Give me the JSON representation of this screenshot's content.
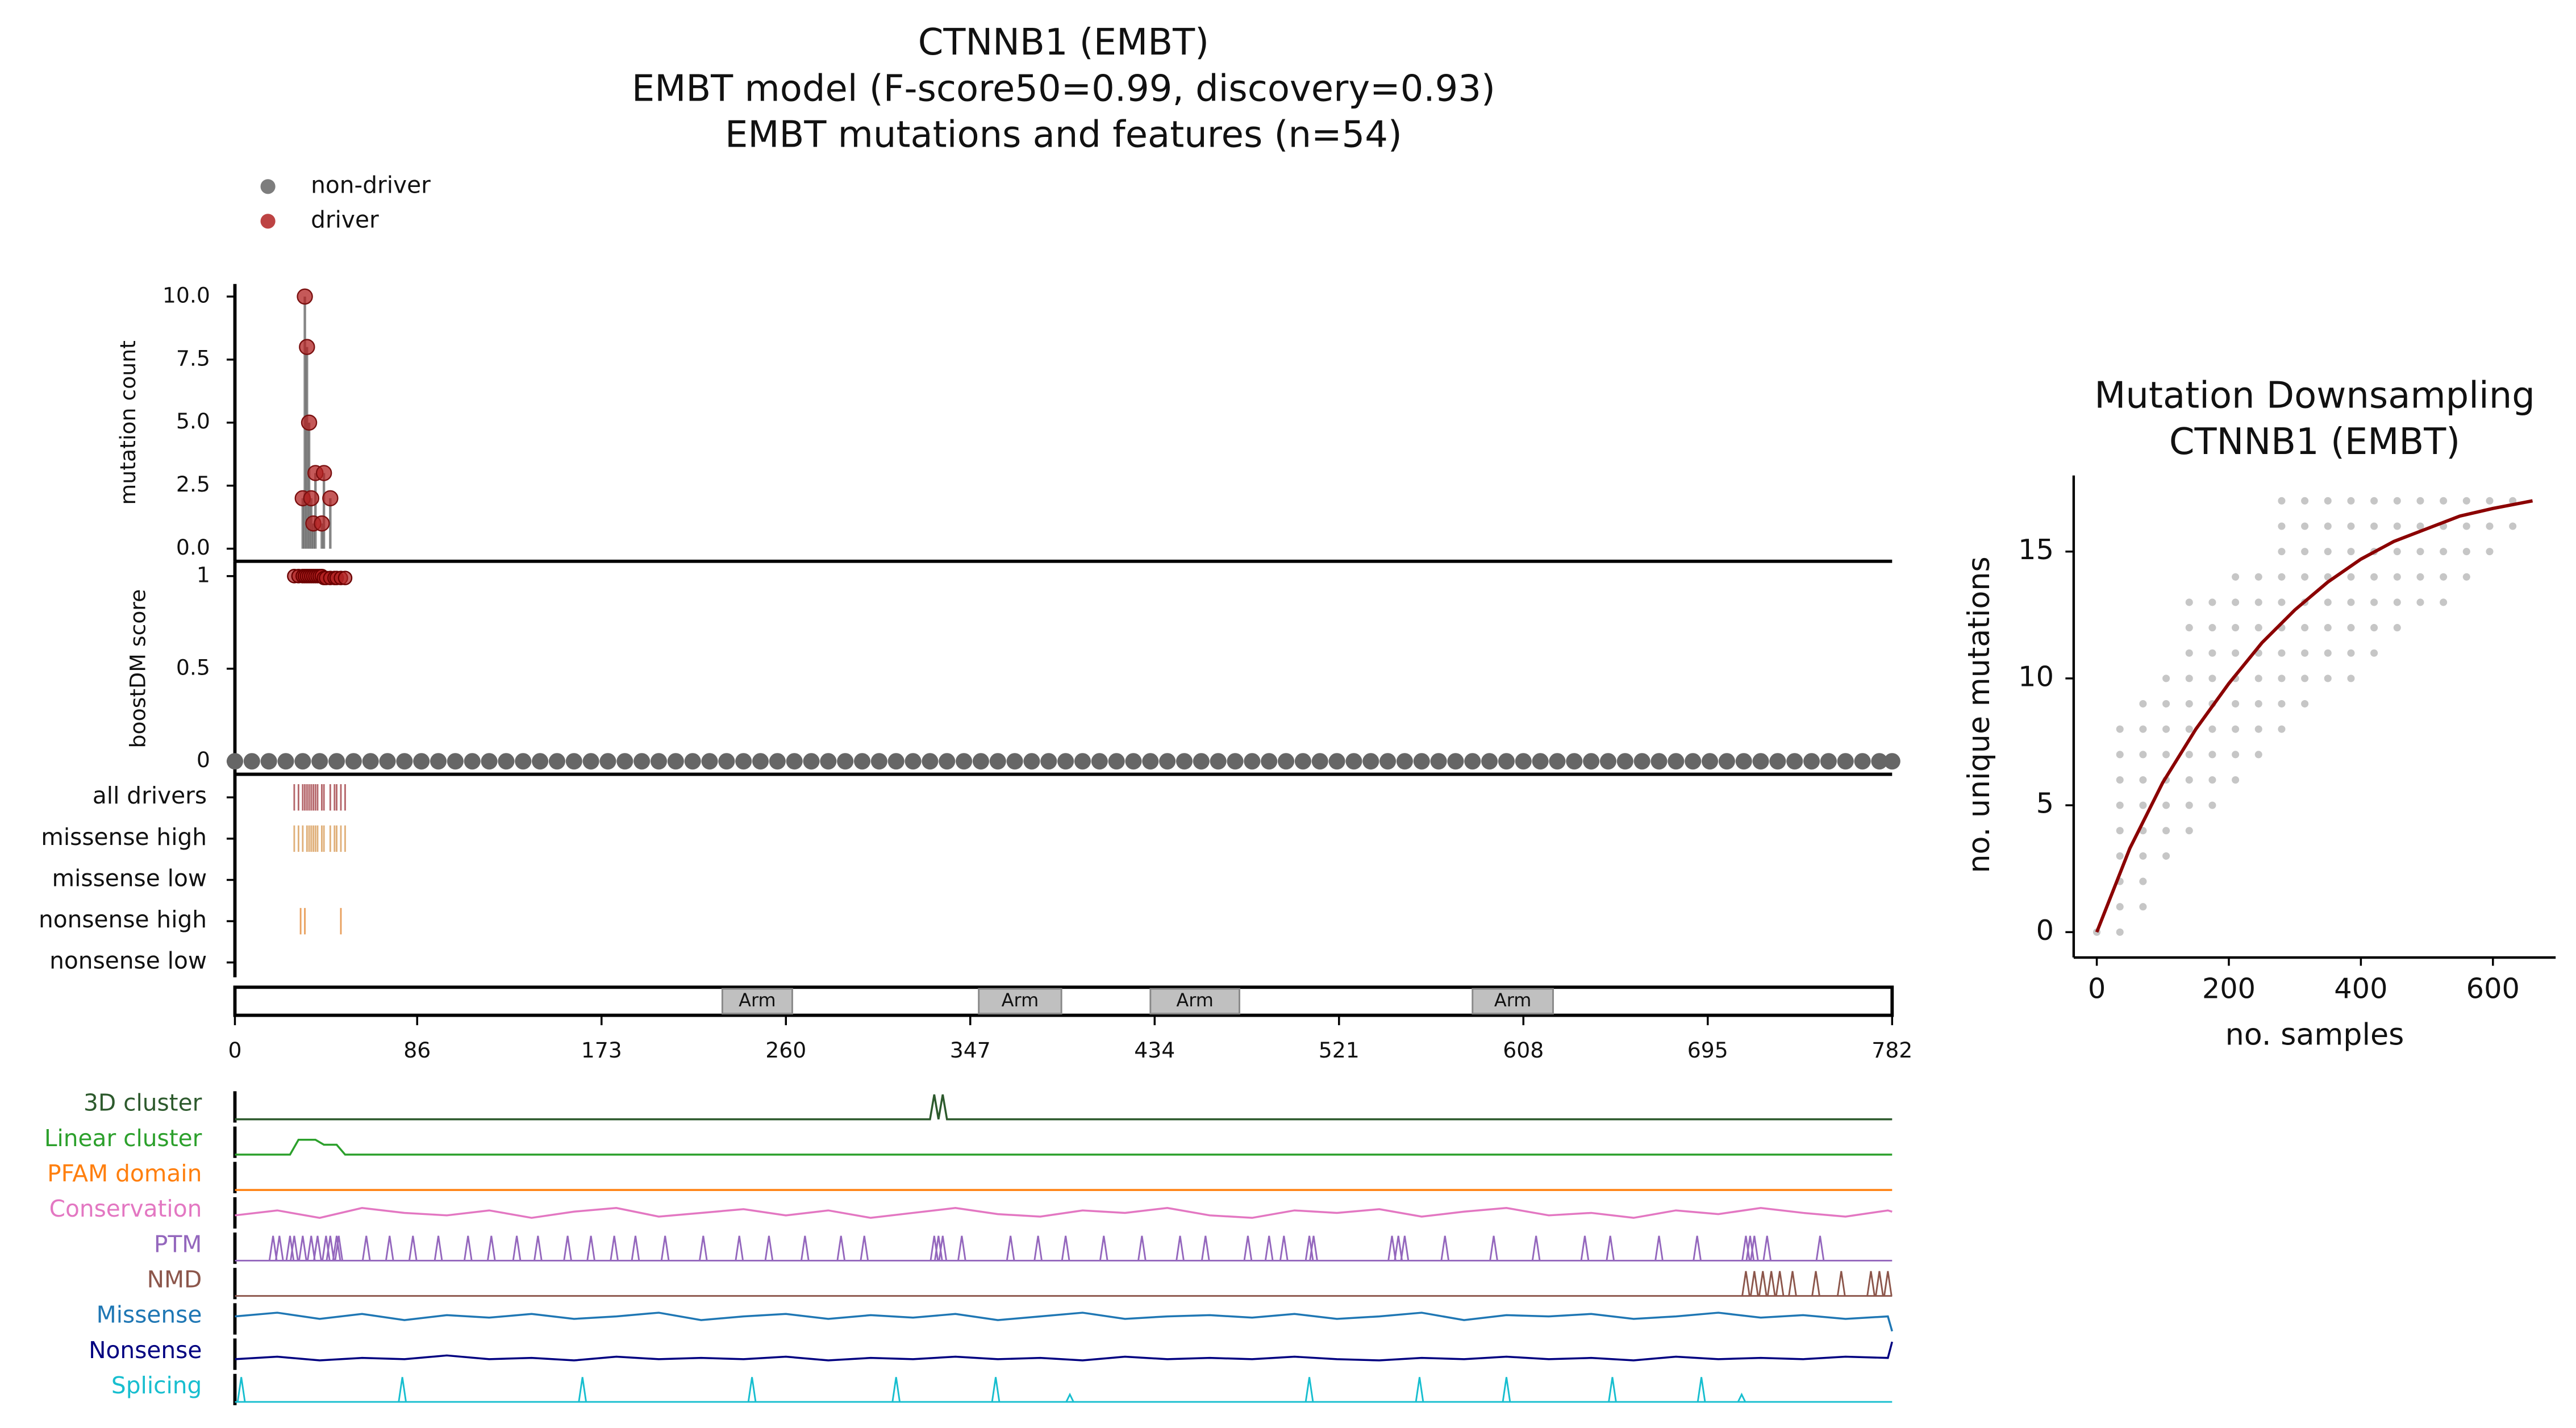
{
  "chart_data": [
    {
      "type": "lollipop",
      "title": [
        "CTNNB1 (EMBT)",
        "EMBT model (F-score50=0.99, discovery=0.93)",
        "EMBT mutations and features (n=54)"
      ],
      "xlim": [
        0,
        782
      ],
      "xticks": [
        0,
        86,
        173,
        260,
        347,
        434,
        521,
        608,
        695,
        782
      ],
      "mutations": {
        "ylabel": "mutation count",
        "color": "#b22222",
        "ylim": [
          -0.5,
          10.5
        ],
        "yticks": [
          {
            "value": 0,
            "label": "0.0"
          },
          {
            "value": 2.5,
            "label": "2.5"
          },
          {
            "value": 5,
            "label": "5.0"
          },
          {
            "value": 7.5,
            "label": "7.5"
          },
          {
            "value": 10,
            "label": "10.0"
          }
        ],
        "x": [
          32,
          33,
          34,
          35,
          36,
          37,
          38,
          41,
          42,
          45
        ],
        "values": [
          2,
          10,
          8,
          5,
          2,
          1,
          3,
          1,
          3,
          2
        ]
      },
      "scores": {
        "ylabel": "boostDM score",
        "ylim": [
          -0.07,
          1.08
        ],
        "yticks": [
          0,
          0.5,
          1
        ],
        "series": [
          {
            "name": "non-driver",
            "color": "#666666",
            "x": [
              0,
              8,
              16,
              24,
              32,
              40,
              48,
              56,
              64,
              72,
              80,
              88,
              96,
              104,
              112,
              120,
              128,
              136,
              144,
              152,
              160,
              168,
              176,
              184,
              192,
              200,
              208,
              216,
              224,
              232,
              240,
              248,
              256,
              264,
              272,
              280,
              288,
              296,
              304,
              312,
              320,
              328,
              336,
              344,
              352,
              360,
              368,
              376,
              384,
              392,
              400,
              408,
              416,
              424,
              432,
              440,
              448,
              456,
              464,
              472,
              480,
              488,
              496,
              504,
              512,
              520,
              528,
              536,
              544,
              552,
              560,
              568,
              576,
              584,
              592,
              600,
              608,
              616,
              624,
              632,
              640,
              648,
              656,
              664,
              672,
              680,
              688,
              696,
              704,
              712,
              720,
              728,
              736,
              744,
              752,
              760,
              768,
              776,
              782
            ],
            "values": [
              0,
              0,
              0,
              0,
              0,
              0,
              0,
              0,
              0,
              0,
              0,
              0,
              0,
              0,
              0,
              0,
              0,
              0,
              0,
              0,
              0,
              0,
              0,
              0,
              0,
              0,
              0,
              0,
              0,
              0,
              0,
              0,
              0,
              0,
              0,
              0,
              0,
              0,
              0,
              0,
              0,
              0,
              0,
              0,
              0,
              0,
              0,
              0,
              0,
              0,
              0,
              0,
              0,
              0,
              0,
              0,
              0,
              0,
              0,
              0,
              0,
              0,
              0,
              0,
              0,
              0,
              0,
              0,
              0,
              0,
              0,
              0,
              0,
              0,
              0,
              0,
              0,
              0,
              0,
              0,
              0,
              0,
              0,
              0,
              0,
              0,
              0,
              0,
              0,
              0,
              0,
              0,
              0,
              0,
              0,
              0,
              0,
              0,
              0
            ]
          },
          {
            "name": "driver",
            "color": "#b22222",
            "x": [
              28,
              30,
              32,
              33,
              34,
              35,
              36,
              37,
              38,
              39,
              40,
              41,
              42,
              43,
              45,
              47,
              48,
              50,
              52
            ],
            "values": [
              1,
              1,
              1,
              1,
              1,
              1,
              1,
              1,
              1,
              1,
              1,
              1,
              0.99,
              0.99,
              0.99,
              0.99,
              0.99,
              0.99,
              0.99
            ]
          }
        ]
      },
      "tracks": [
        {
          "name": "all drivers",
          "color": "#b5676b",
          "positions": [
            28,
            30,
            32,
            33,
            34,
            35,
            36,
            37,
            38,
            39,
            41,
            42,
            45,
            47,
            48,
            50,
            52
          ]
        },
        {
          "name": "missense high",
          "color": "#e0b07a",
          "positions": [
            28,
            30,
            32,
            34,
            35,
            36,
            37,
            38,
            39,
            41,
            42,
            45,
            47,
            48,
            50,
            52
          ]
        },
        {
          "name": "missense low",
          "color": "#e0b07a",
          "positions": []
        },
        {
          "name": "nonsense high",
          "color": "#e9a15f",
          "positions": [
            31,
            33,
            50
          ]
        },
        {
          "name": "nonsense low",
          "color": "#e9a15f",
          "positions": []
        }
      ],
      "domains": [
        {
          "name": "Arm",
          "start": 230,
          "end": 263
        },
        {
          "name": "Arm",
          "start": 351,
          "end": 390
        },
        {
          "name": "Arm",
          "start": 432,
          "end": 474
        },
        {
          "name": "Arm",
          "start": 584,
          "end": 622
        }
      ],
      "features": [
        {
          "name": "3D cluster",
          "color": "#2d5a2d",
          "x": [
            0,
            328,
            330,
            332,
            334,
            336,
            782
          ],
          "values": [
            0,
            0,
            1,
            0,
            1,
            0,
            0
          ]
        },
        {
          "name": "Linear cluster",
          "color": "#2ca02c",
          "x": [
            0,
            26,
            30,
            38,
            42,
            48,
            52,
            782
          ],
          "values": [
            0,
            0,
            0.6,
            0.6,
            0.4,
            0.4,
            0,
            0
          ]
        },
        {
          "name": "PFAM domain",
          "color": "#ff7f0e",
          "x": [
            0,
            782
          ],
          "values": [
            0,
            0
          ]
        },
        {
          "name": "Conservation",
          "color": "#e377c2",
          "x": [
            0,
            20,
            40,
            60,
            80,
            100,
            120,
            140,
            160,
            180,
            200,
            220,
            240,
            260,
            280,
            300,
            320,
            340,
            360,
            380,
            400,
            420,
            440,
            460,
            480,
            500,
            520,
            540,
            560,
            580,
            600,
            620,
            640,
            660,
            680,
            700,
            720,
            740,
            760,
            780,
            782
          ],
          "values": [
            0.4,
            0.6,
            0.3,
            0.7,
            0.5,
            0.4,
            0.6,
            0.3,
            0.55,
            0.7,
            0.35,
            0.5,
            0.65,
            0.4,
            0.6,
            0.3,
            0.5,
            0.7,
            0.45,
            0.35,
            0.6,
            0.5,
            0.7,
            0.4,
            0.3,
            0.6,
            0.5,
            0.65,
            0.35,
            0.55,
            0.7,
            0.4,
            0.5,
            0.3,
            0.6,
            0.45,
            0.7,
            0.5,
            0.35,
            0.6,
            0.55
          ]
        },
        {
          "name": "PTM",
          "color": "#9467bd",
          "positions": [
            18,
            21,
            26,
            28,
            32,
            36,
            39,
            43,
            45,
            48,
            49,
            62,
            73,
            84,
            96,
            110,
            121,
            133,
            143,
            157,
            168,
            179,
            189,
            203,
            221,
            238,
            252,
            269,
            286,
            297,
            330,
            332,
            334,
            343,
            366,
            379,
            392,
            410,
            428,
            446,
            458,
            478,
            488,
            495,
            507,
            509,
            546,
            549,
            552,
            571,
            594,
            614,
            637,
            649,
            672,
            690,
            713,
            715,
            717,
            723,
            748
          ],
          "values": [
            1,
            1,
            1,
            1,
            1,
            1,
            1,
            1,
            1,
            1,
            1,
            1,
            1,
            1,
            1,
            1,
            1,
            1,
            1,
            1,
            1,
            1,
            1,
            1,
            1,
            1,
            1,
            1,
            1,
            1,
            1,
            1,
            1,
            1,
            1,
            1,
            1,
            1,
            1,
            1,
            1,
            1,
            1,
            1,
            1,
            1,
            1,
            1,
            1,
            1,
            1,
            1,
            1,
            1,
            1,
            1,
            1,
            1,
            1,
            1,
            1
          ]
        },
        {
          "name": "NMD",
          "color": "#8c564b",
          "positions": [
            713,
            717,
            721,
            725,
            729,
            735,
            746,
            758,
            772,
            776,
            780
          ],
          "values": [
            1,
            1,
            1,
            1,
            1,
            1,
            1,
            1,
            1,
            1,
            1
          ]
        },
        {
          "name": "Missense",
          "color": "#1f77b4",
          "x": [
            0,
            20,
            40,
            60,
            80,
            100,
            120,
            140,
            160,
            180,
            200,
            220,
            240,
            260,
            280,
            300,
            320,
            340,
            360,
            380,
            400,
            420,
            440,
            460,
            480,
            500,
            520,
            540,
            560,
            580,
            600,
            620,
            640,
            660,
            680,
            700,
            720,
            740,
            760,
            780,
            782
          ],
          "values": [
            0.6,
            0.75,
            0.5,
            0.7,
            0.45,
            0.65,
            0.55,
            0.7,
            0.5,
            0.6,
            0.75,
            0.45,
            0.6,
            0.7,
            0.5,
            0.65,
            0.55,
            0.7,
            0.45,
            0.6,
            0.75,
            0.5,
            0.6,
            0.65,
            0.55,
            0.7,
            0.5,
            0.6,
            0.75,
            0.45,
            0.65,
            0.6,
            0.7,
            0.5,
            0.6,
            0.75,
            0.55,
            0.65,
            0.5,
            0.6,
            0
          ]
        },
        {
          "name": "Nonsense",
          "color": "#000080",
          "x": [
            0,
            20,
            40,
            60,
            80,
            100,
            120,
            140,
            160,
            180,
            200,
            220,
            240,
            260,
            280,
            300,
            320,
            340,
            360,
            380,
            400,
            420,
            440,
            460,
            480,
            500,
            520,
            540,
            560,
            580,
            600,
            620,
            640,
            660,
            680,
            700,
            720,
            740,
            760,
            780,
            782
          ],
          "values": [
            0.3,
            0.4,
            0.25,
            0.35,
            0.3,
            0.45,
            0.3,
            0.35,
            0.25,
            0.4,
            0.3,
            0.35,
            0.3,
            0.4,
            0.25,
            0.35,
            0.3,
            0.4,
            0.3,
            0.35,
            0.25,
            0.4,
            0.3,
            0.35,
            0.3,
            0.4,
            0.3,
            0.25,
            0.35,
            0.3,
            0.4,
            0.3,
            0.35,
            0.25,
            0.4,
            0.3,
            0.35,
            0.3,
            0.4,
            0.35,
            1
          ]
        },
        {
          "name": "Splicing",
          "color": "#17becf",
          "positions": [
            3,
            79,
            164,
            244,
            312,
            359,
            394,
            507,
            559,
            600,
            650,
            692,
            711
          ],
          "values": [
            1,
            1,
            1,
            1,
            1,
            1,
            0.3,
            1,
            1,
            1,
            1,
            1,
            0.3
          ]
        }
      ]
    },
    {
      "type": "line",
      "title": [
        "Mutation Downsampling",
        "CTNNB1 (EMBT)"
      ],
      "xlabel": "no. samples",
      "ylabel": "no. unique mutations",
      "xlim": [
        -35,
        695
      ],
      "xticks": [
        0,
        200,
        400,
        600
      ],
      "ylim": [
        -1,
        18
      ],
      "yticks": [
        0,
        5,
        10,
        15
      ],
      "columns": {
        "color": "#808080",
        "x": [
          0,
          35,
          70,
          105,
          140,
          175,
          210,
          245,
          280,
          315,
          350,
          385,
          420,
          455,
          490,
          525,
          560,
          595,
          630
        ],
        "ymin": [
          0,
          0,
          1,
          3,
          4,
          5,
          6,
          7,
          8,
          9,
          10,
          10,
          11,
          12,
          13,
          13,
          14,
          15,
          16
        ],
        "ymax": [
          0,
          8,
          9,
          10,
          13,
          13,
          14,
          14,
          17,
          17,
          17,
          17,
          17,
          17,
          17,
          17,
          17,
          17,
          17
        ]
      },
      "curve": {
        "color": "#8b0000",
        "x": [
          0,
          50,
          100,
          150,
          200,
          250,
          300,
          350,
          400,
          450,
          500,
          550,
          600,
          660
        ],
        "values": [
          0,
          3.3,
          5.9,
          8.0,
          9.8,
          11.4,
          12.7,
          13.8,
          14.7,
          15.4,
          15.9,
          16.4,
          16.7,
          17.0
        ]
      }
    }
  ]
}
